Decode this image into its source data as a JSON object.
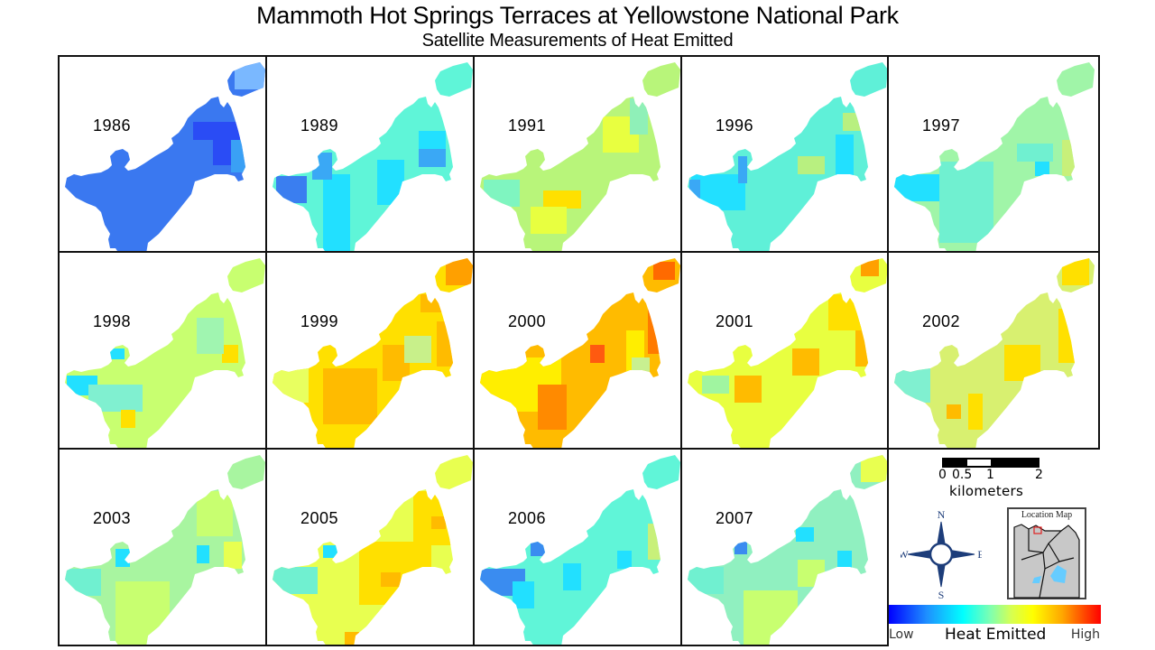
{
  "header": {
    "title": "Mammoth Hot Springs Terraces at Yellowstone National Park",
    "subtitle": "Satellite Measurements of Heat Emitted"
  },
  "panels": [
    {
      "year": "1986",
      "row": 0,
      "col": 0,
      "base": "#3a78f0",
      "blocks": [
        [
          "#2a4cf5",
          146,
          66,
          52,
          20
        ],
        [
          "#2a4cf5",
          168,
          86,
          20,
          28
        ],
        [
          "#3aa0f5",
          188,
          86,
          20,
          36
        ],
        [
          "#7ab8ff",
          192,
          0,
          40,
          30
        ]
      ]
    },
    {
      "year": "1989",
      "row": 0,
      "col": 1,
      "base": "#5ff5d8",
      "blocks": [
        [
          "#3a7ef0",
          8,
          126,
          34,
          30
        ],
        [
          "#22e0ff",
          60,
          124,
          30,
          100
        ],
        [
          "#22e0ff",
          120,
          108,
          30,
          50
        ],
        [
          "#3aa8f5",
          166,
          96,
          30,
          20
        ],
        [
          "#22e0ff",
          166,
          76,
          30,
          20
        ],
        [
          "#3aa8f5",
          48,
          100,
          22,
          30
        ]
      ]
    },
    {
      "year": "1991",
      "row": 0,
      "col": 2,
      "base": "#b8f57a",
      "blocks": [
        [
          "#ffe000",
          74,
          142,
          42,
          20
        ],
        [
          "#e8ff40",
          60,
          160,
          40,
          30
        ],
        [
          "#7ff5c0",
          8,
          130,
          40,
          30
        ],
        [
          "#e8ff40",
          140,
          60,
          40,
          40
        ],
        [
          "#8ff0b8",
          170,
          40,
          20,
          40
        ]
      ]
    },
    {
      "year": "1996",
      "row": 0,
      "col": 3,
      "base": "#5ff0d8",
      "blocks": [
        [
          "#22e0ff",
          8,
          124,
          60,
          40
        ],
        [
          "#3aa8f5",
          60,
          104,
          10,
          30
        ],
        [
          "#22e0ff",
          168,
          80,
          20,
          50
        ],
        [
          "#b8f080",
          126,
          104,
          30,
          20
        ],
        [
          "#b8f080",
          176,
          56,
          20,
          20
        ],
        [
          "#3aa8f5",
          6,
          130,
          12,
          24
        ]
      ]
    },
    {
      "year": "1997",
      "row": 0,
      "col": 4,
      "base": "#a0f5a8",
      "blocks": [
        [
          "#22e0ff",
          4,
          124,
          50,
          30
        ],
        [
          "#70f0d0",
          54,
          110,
          60,
          90
        ],
        [
          "#22e0ff",
          160,
          106,
          16,
          20
        ],
        [
          "#70f0d0",
          140,
          90,
          40,
          20
        ],
        [
          "#c8f07a",
          190,
          86,
          20,
          40
        ]
      ]
    },
    {
      "year": "1998",
      "row": 1,
      "col": 0,
      "base": "#c8ff70",
      "blocks": [
        [
          "#22e0ff",
          6,
          130,
          34,
          22
        ],
        [
          "#80f0d0",
          30,
          140,
          60,
          30
        ],
        [
          "#22e0ff",
          40,
          100,
          30,
          12
        ],
        [
          "#ffe000",
          66,
          168,
          16,
          20
        ],
        [
          "#ffe000",
          178,
          96,
          18,
          20
        ],
        [
          "#a0f5b0",
          150,
          66,
          30,
          40
        ]
      ]
    },
    {
      "year": "1999",
      "row": 1,
      "col": 1,
      "base": "#ffe000",
      "blocks": [
        [
          "#ffbb00",
          60,
          122,
          60,
          62
        ],
        [
          "#ffbb00",
          126,
          96,
          30,
          40
        ],
        [
          "#ffbb00",
          186,
          70,
          20,
          50
        ],
        [
          "#ffbb00",
          168,
          40,
          30,
          20
        ],
        [
          "#e8ff60",
          4,
          120,
          40,
          40
        ],
        [
          "#c8f08a",
          150,
          86,
          30,
          30
        ],
        [
          "#ffa000",
          196,
          0,
          30,
          30
        ]
      ]
    },
    {
      "year": "2000",
      "row": 1,
      "col": 2,
      "base": "#ffbb00",
      "blocks": [
        [
          "#ffee00",
          4,
          110,
          90,
          60
        ],
        [
          "#ff8a00",
          68,
          140,
          32,
          50
        ],
        [
          "#ff5a10",
          126,
          96,
          16,
          20
        ],
        [
          "#ffee00",
          166,
          80,
          20,
          50
        ],
        [
          "#ff6a00",
          196,
          4,
          24,
          20
        ],
        [
          "#ff7a00",
          190,
          56,
          24,
          50
        ],
        [
          "#c8f090",
          172,
          110,
          20,
          20
        ]
      ]
    },
    {
      "year": "2001",
      "row": 1,
      "col": 3,
      "base": "#e8ff40",
      "blocks": [
        [
          "#ffbb00",
          56,
          130,
          30,
          30
        ],
        [
          "#ffbb00",
          120,
          100,
          30,
          30
        ],
        [
          "#ffbb00",
          190,
          70,
          20,
          50
        ],
        [
          "#ffe000",
          160,
          40,
          40,
          40
        ],
        [
          "#a0f5a0",
          20,
          130,
          30,
          20
        ],
        [
          "#ffa000",
          196,
          0,
          20,
          20
        ]
      ]
    },
    {
      "year": "2002",
      "row": 1,
      "col": 4,
      "base": "#d8f070",
      "blocks": [
        [
          "#ffe000",
          126,
          96,
          40,
          40
        ],
        [
          "#ffe000",
          186,
          56,
          20,
          60
        ],
        [
          "#ffbb00",
          62,
          162,
          16,
          16
        ],
        [
          "#ffe000",
          86,
          150,
          16,
          40
        ],
        [
          "#80f0d0",
          4,
          120,
          40,
          40
        ],
        [
          "#ffe000",
          190,
          0,
          30,
          30
        ]
      ]
    },
    {
      "year": "2003",
      "row": 2,
      "col": 0,
      "base": "#a8f5a0",
      "blocks": [
        [
          "#c8ff70",
          60,
          140,
          60,
          70
        ],
        [
          "#c8ff70",
          150,
          40,
          40,
          50
        ],
        [
          "#22e0ff",
          60,
          104,
          16,
          20
        ],
        [
          "#22e0ff",
          150,
          100,
          14,
          20
        ],
        [
          "#70f0d0",
          4,
          126,
          40,
          30
        ],
        [
          "#e8ff50",
          180,
          96,
          20,
          30
        ]
      ]
    },
    {
      "year": "2005",
      "row": 2,
      "col": 1,
      "base": "#e8ff50",
      "blocks": [
        [
          "#ffe000",
          100,
          96,
          80,
          70
        ],
        [
          "#ffbb00",
          124,
          130,
          22,
          16
        ],
        [
          "#ffe000",
          160,
          40,
          46,
          60
        ],
        [
          "#ffbb00",
          180,
          68,
          16,
          14
        ],
        [
          "#ffbb00",
          84,
          196,
          16,
          16
        ],
        [
          "#70f0d0",
          4,
          124,
          50,
          30
        ],
        [
          "#22e0ff",
          60,
          100,
          16,
          14
        ]
      ]
    },
    {
      "year": "2006",
      "row": 2,
      "col": 2,
      "base": "#60f5d8",
      "blocks": [
        [
          "#3a8cf0",
          4,
          126,
          50,
          30
        ],
        [
          "#3a8cf0",
          60,
          96,
          24,
          16
        ],
        [
          "#22e0ff",
          40,
          140,
          24,
          30
        ],
        [
          "#22e0ff",
          96,
          120,
          20,
          30
        ],
        [
          "#22e0ff",
          156,
          106,
          16,
          20
        ],
        [
          "#c8f07a",
          190,
          76,
          20,
          40
        ]
      ]
    },
    {
      "year": "2007",
      "row": 2,
      "col": 3,
      "base": "#90f0c0",
      "blocks": [
        [
          "#c8ff70",
          66,
          150,
          60,
          60
        ],
        [
          "#c8ff70",
          126,
          116,
          30,
          30
        ],
        [
          "#22e0ff",
          170,
          106,
          16,
          20
        ],
        [
          "#22e0ff",
          124,
          80,
          20,
          16
        ],
        [
          "#3a8cf0",
          56,
          96,
          14,
          14
        ],
        [
          "#e8ff50",
          196,
          0,
          30,
          30
        ],
        [
          "#70f0d0",
          4,
          124,
          40,
          30
        ]
      ]
    }
  ],
  "legend": {
    "scale": {
      "ticks": [
        "0",
        "0.5",
        "1",
        "2"
      ],
      "unit": "kilometers"
    },
    "compass": {
      "n": "N",
      "s": "S",
      "e": "E",
      "w": "W"
    },
    "location_map_title": "Location Map",
    "colorbar": {
      "low": "Low",
      "label": "Heat Emitted",
      "high": "High",
      "colors": [
        "#0000ff",
        "#1e90ff",
        "#00ffff",
        "#7fffb0",
        "#d8ff50",
        "#ffff00",
        "#ffa500",
        "#ff0000"
      ]
    }
  }
}
